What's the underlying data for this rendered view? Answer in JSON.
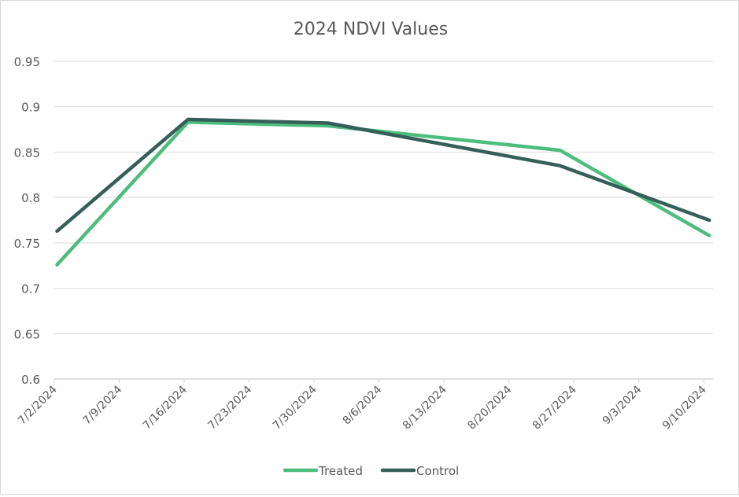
{
  "chart_data": {
    "type": "line",
    "title": "2024 NDVI Values",
    "xlabel": "",
    "ylabel": "",
    "ylim": [
      0.6,
      0.95
    ],
    "yticks": [
      0.6,
      0.65,
      0.7,
      0.75,
      0.8,
      0.85,
      0.9,
      0.95
    ],
    "ytick_labels": [
      "0.6",
      "0.65",
      "0.7",
      "0.75",
      "0.8",
      "0.85",
      "0.9",
      "0.95"
    ],
    "xlim_days": [
      0,
      71
    ],
    "xaxis_start": "7/2/2024",
    "xticks_days": [
      0,
      7,
      14,
      21,
      28,
      35,
      42,
      49,
      56,
      63,
      70
    ],
    "xtick_labels": [
      "7/2/2024",
      "7/9/2024",
      "7/16/2024",
      "7/23/2024",
      "7/30/2024",
      "8/6/2024",
      "8/13/2024",
      "8/20/2024",
      "8/27/2024",
      "9/3/2024",
      "9/10/2024"
    ],
    "grid": true,
    "legend_position": "bottom",
    "x": [
      "7/2/2024",
      "7/16/2024",
      "7/31/2024",
      "8/25/2024",
      "9/10/2024"
    ],
    "x_days": [
      0.3,
      14.4,
      29.5,
      54.5,
      70.6
    ],
    "series": [
      {
        "name": "Treated",
        "color": "#4dbd7e",
        "values": [
          0.726,
          0.883,
          0.879,
          0.852,
          0.758
        ]
      },
      {
        "name": "Control",
        "color": "#355f58",
        "values": [
          0.763,
          0.886,
          0.882,
          0.835,
          0.775
        ]
      }
    ]
  }
}
